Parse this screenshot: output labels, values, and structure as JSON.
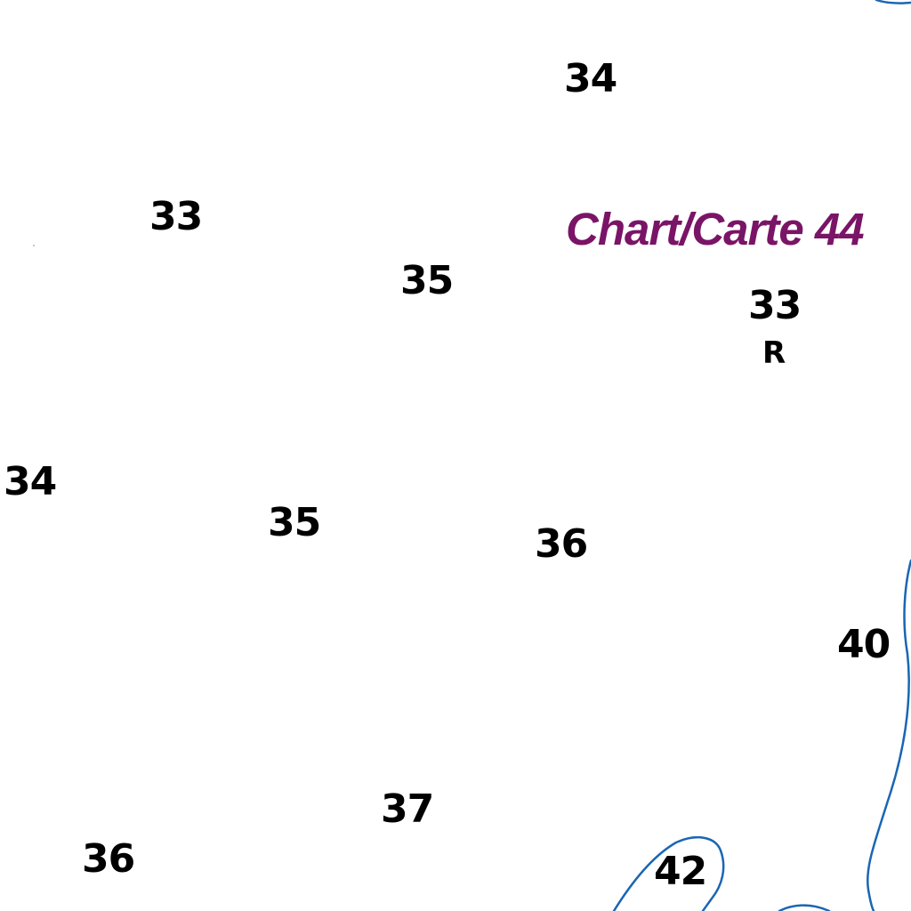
{
  "map": {
    "background_color": "#ffffff",
    "sounding_color": "#000000",
    "contour_color": "#1a66b3",
    "chart_reference_color": "#7a1466",
    "chart_reference": "Chart/Carte 44",
    "soundings": [
      {
        "id": "34-north",
        "value": "34"
      },
      {
        "id": "33-northwest",
        "value": "33"
      },
      {
        "id": "35-upper",
        "value": "35"
      },
      {
        "id": "33-east",
        "value": "33"
      },
      {
        "id": "34-west",
        "value": "34"
      },
      {
        "id": "35-lower",
        "value": "35"
      },
      {
        "id": "36-center",
        "value": "36"
      },
      {
        "id": "40-east",
        "value": "40"
      },
      {
        "id": "37-south",
        "value": "37"
      },
      {
        "id": "36-southwest",
        "value": "36"
      },
      {
        "id": "42-south",
        "value": "42"
      }
    ],
    "bottom_quality_label": "R"
  }
}
